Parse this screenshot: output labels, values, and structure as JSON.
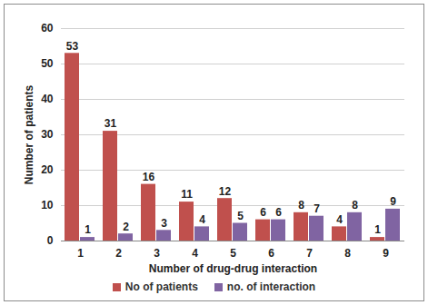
{
  "chart_data": {
    "type": "bar",
    "x_label": "Number of drug-drug interaction",
    "y_label": "Number of patients",
    "categories": [
      "1",
      "2",
      "3",
      "4",
      "5",
      "6",
      "7",
      "8",
      "9"
    ],
    "series": [
      {
        "name": "No of patients",
        "color": "#c0504d",
        "values": [
          53,
          31,
          16,
          11,
          12,
          6,
          8,
          4,
          1
        ]
      },
      {
        "name": "no. of interaction",
        "color": "#8064a2",
        "values": [
          1,
          2,
          3,
          4,
          5,
          6,
          7,
          8,
          9
        ]
      }
    ],
    "ylim": [
      0,
      60
    ],
    "yticks": [
      0,
      10,
      20,
      30,
      40,
      50,
      60
    ],
    "grid": true,
    "data_labels": true,
    "legend": "bottom"
  }
}
